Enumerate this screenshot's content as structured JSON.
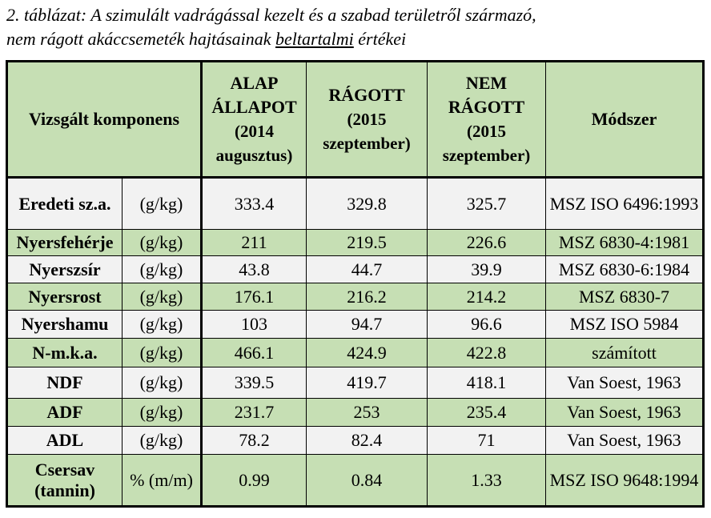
{
  "caption": {
    "line1": "2. táblázat: A szimulált vadrágással kezelt és a szabad területről származó,",
    "line2_pre": "nem rágott akáccsemeték hajtásainak ",
    "line2_underlined": "beltartalmi",
    "line2_post": " értékei"
  },
  "header": {
    "component": "Vizsgált komponens",
    "alap": [
      "ALAP",
      "ÁLLAPOT",
      "(2014",
      "augusztus)"
    ],
    "ragott": [
      "RÁGOTT",
      "(2015",
      "szeptember)"
    ],
    "nem_ragott": [
      "NEM",
      "RÁGOTT",
      "(2015",
      "szeptember)"
    ],
    "method": "Módszer"
  },
  "rows": [
    {
      "name": "Eredeti sz.a.",
      "unit": "(g/kg)",
      "alap": "333.4",
      "ragott": "329.8",
      "nem": "325.7",
      "method": "MSZ  ISO 6496:1993",
      "style": "plain"
    },
    {
      "name": "Nyersfehérje",
      "unit": "(g/kg)",
      "alap": "211",
      "ragott": "219.5",
      "nem": "226.6",
      "method": "MSZ 6830-4:1981",
      "style": "alt"
    },
    {
      "name": "Nyerszsír",
      "unit": "(g/kg)",
      "alap": "43.8",
      "ragott": "44.7",
      "nem": "39.9",
      "method": "MSZ 6830-6:1984",
      "style": "plain"
    },
    {
      "name": "Nyersrost",
      "unit": "(g/kg)",
      "alap": "176.1",
      "ragott": "216.2",
      "nem": "214.2",
      "method": "MSZ 6830-7",
      "style": "alt"
    },
    {
      "name": "Nyershamu",
      "unit": "(g/kg)",
      "alap": "103",
      "ragott": "94.7",
      "nem": "96.6",
      "method": "MSZ ISO 5984",
      "style": "plain"
    },
    {
      "name": "N-m.k.a.",
      "unit": "(g/kg)",
      "alap": "466.1",
      "ragott": "424.9",
      "nem": "422.8",
      "method": "számított",
      "style": "alt"
    },
    {
      "name": "NDF",
      "unit": "(g/kg)",
      "alap": "339.5",
      "ragott": "419.7",
      "nem": "418.1",
      "method": "Van Soest, 1963",
      "style": "plain"
    },
    {
      "name": "ADF",
      "unit": "(g/kg)",
      "alap": "231.7",
      "ragott": "253",
      "nem": "235.4",
      "method": "Van Soest, 1963",
      "style": "alt"
    },
    {
      "name": "ADL",
      "unit": "(g/kg)",
      "alap": "78.2",
      "ragott": "82.4",
      "nem": "71",
      "method": "Van Soest, 1963",
      "style": "plain"
    },
    {
      "name": "Csersav (tannin)",
      "unit": "% (m/m)",
      "alap": "0.99",
      "ragott": "0.84",
      "nem": "1.33",
      "method": "MSZ ISO 9648:1994",
      "style": "alt"
    }
  ]
}
